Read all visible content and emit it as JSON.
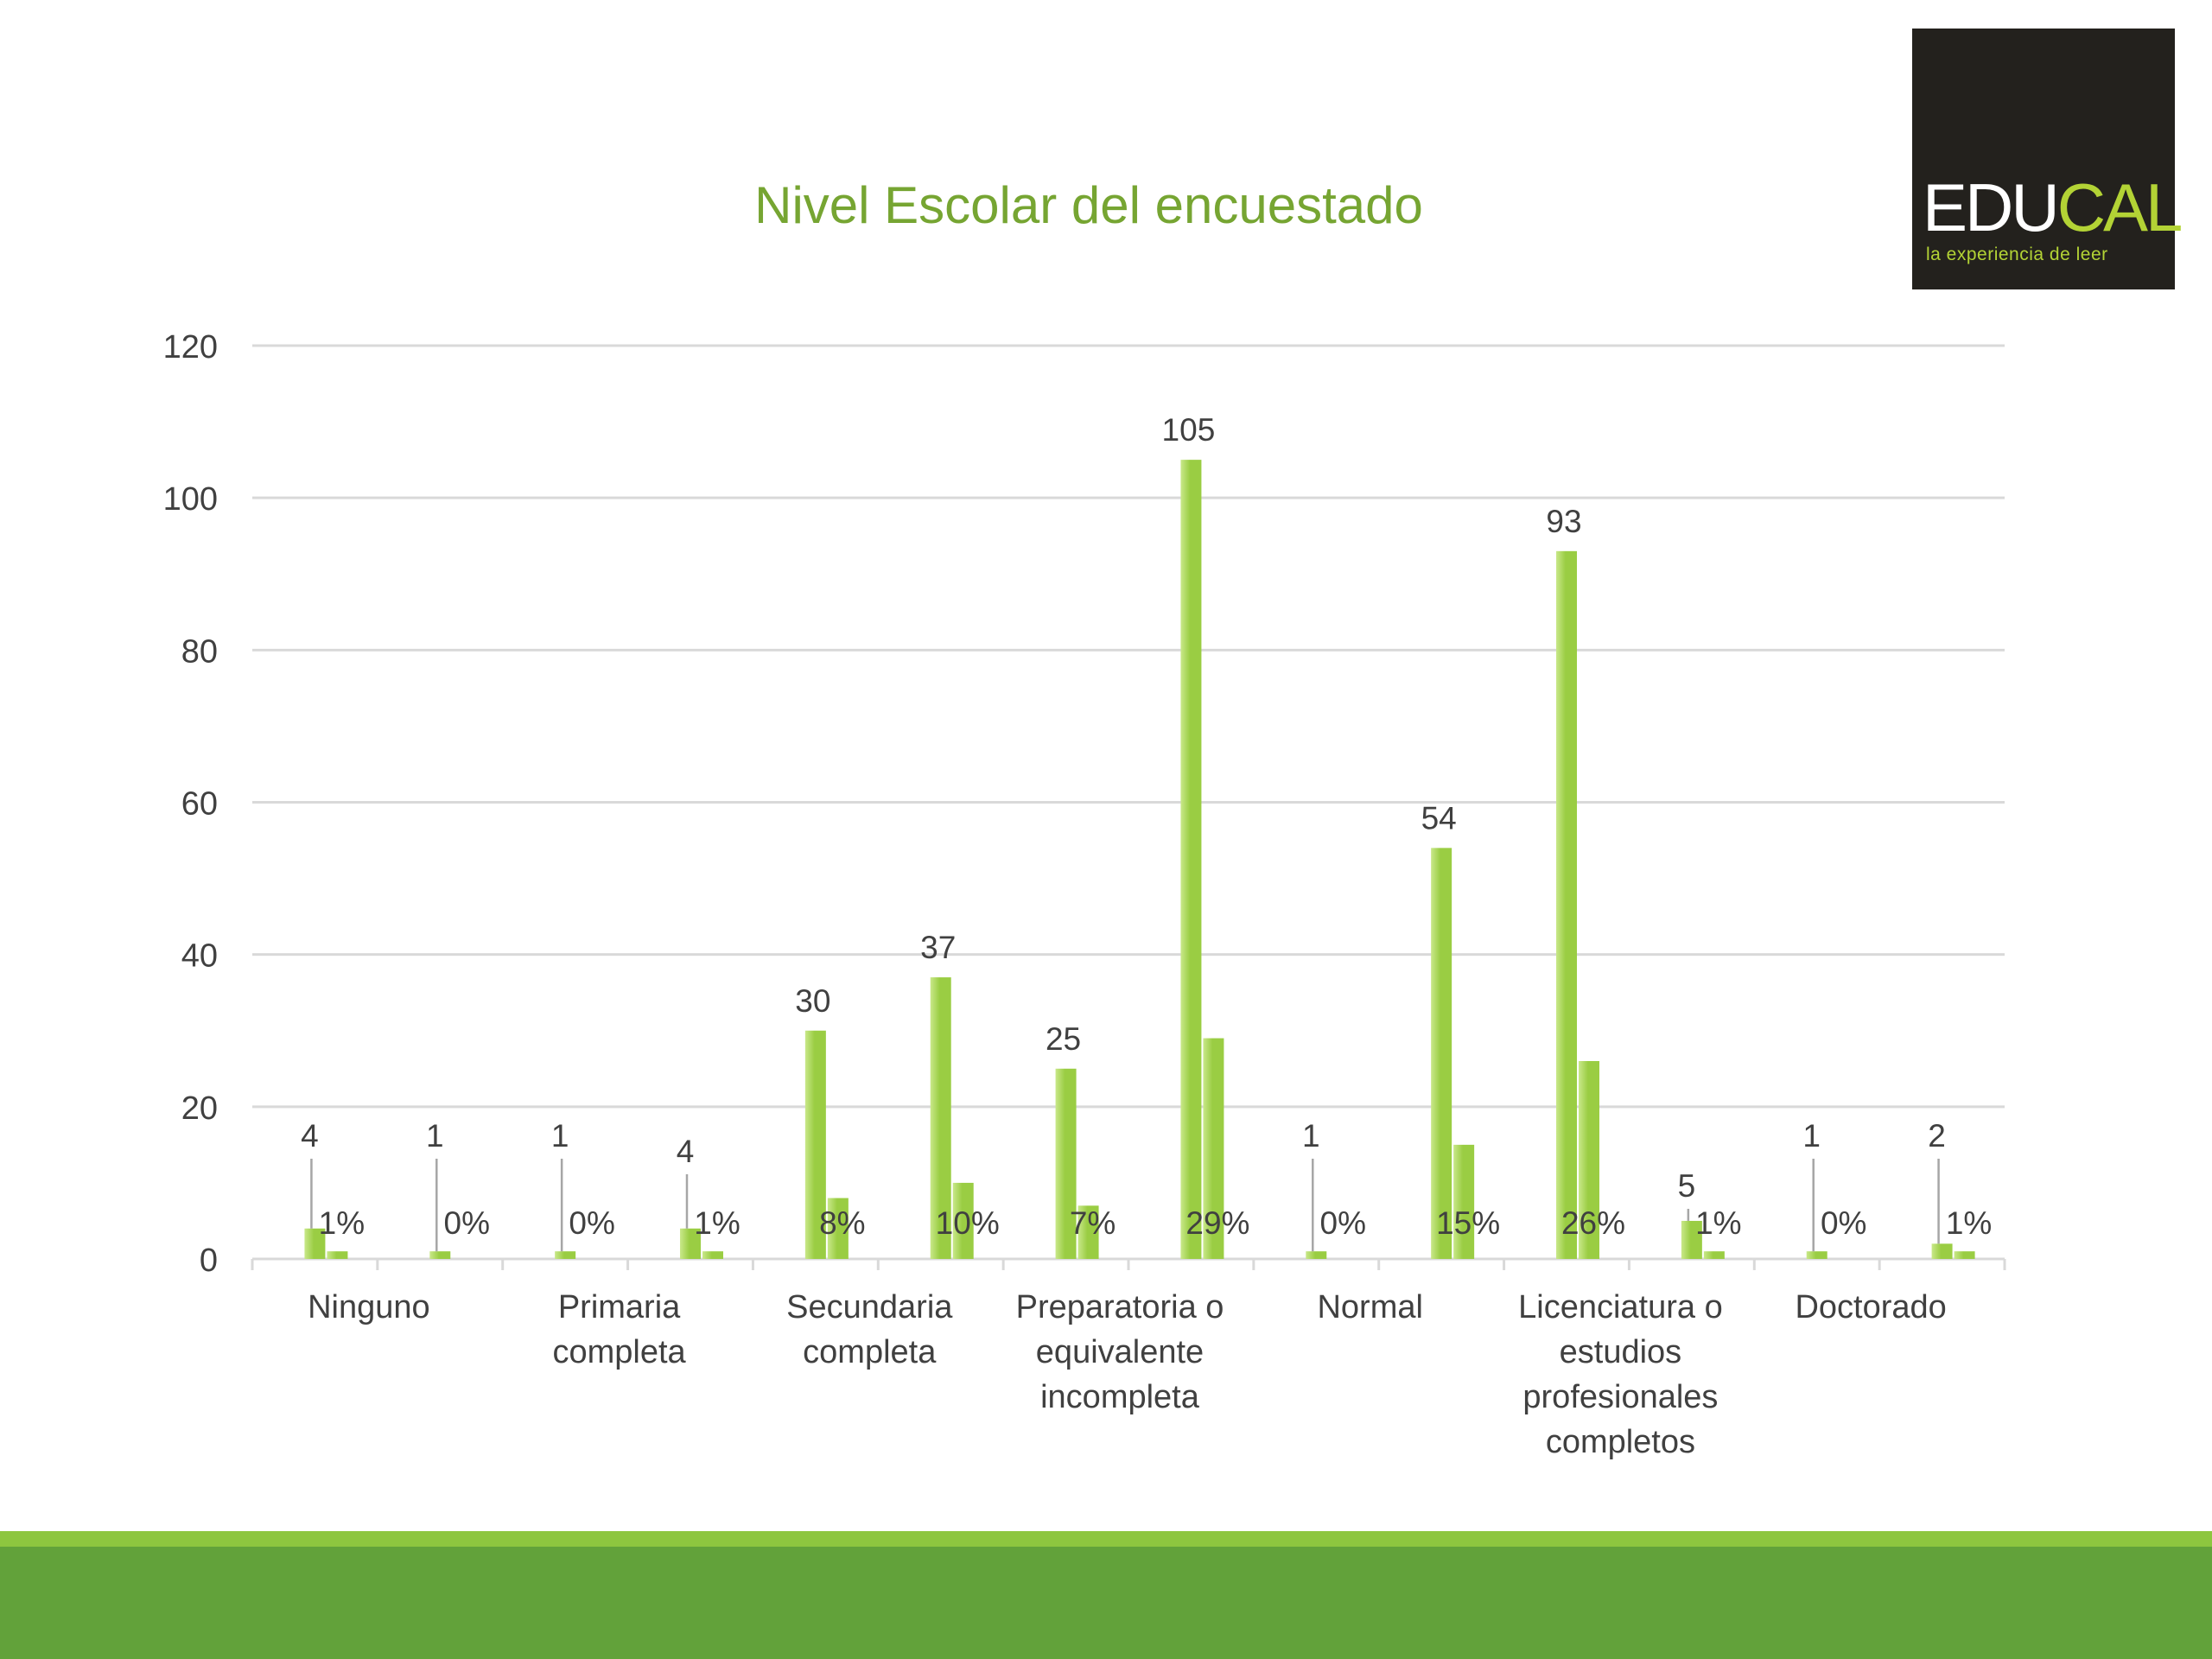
{
  "logo": {
    "word_main": "EDU",
    "word_accent": "CAL",
    "tagline": "la experiencia de leer"
  },
  "chart_data": {
    "type": "bar",
    "title": "Nivel Escolar del encuestado",
    "xlabel": "",
    "ylabel": "",
    "ylim": [
      0,
      120
    ],
    "yticks": [
      0,
      20,
      40,
      60,
      80,
      100,
      120
    ],
    "grid": true,
    "legend": "none",
    "colors": {
      "bar": "#9acd43",
      "bar_light": "#c9e88a",
      "grid": "#d9d9d9",
      "title": "#76a532",
      "text": "#404040",
      "leader": "#a6a6a6"
    },
    "category_labels": [
      "Ninguno",
      "Primaria completa",
      "Secundaria completa",
      "Preparatoria o equivalente incompleta",
      "Normal",
      "Licenciatura o estudios profesionales completos",
      "Doctorado"
    ],
    "category_label_lines": [
      [
        "Ninguno"
      ],
      [
        "Primaria",
        "completa"
      ],
      [
        "Secundaria",
        "completa"
      ],
      [
        "Preparatoria o",
        "equivalente",
        "incompleta"
      ],
      [
        "Normal"
      ],
      [
        "Licenciatura o",
        "estudios",
        "profesionales",
        "completos"
      ],
      [
        "Doctorado"
      ]
    ],
    "series": [
      {
        "values": [
          4,
          1,
          1,
          4,
          30,
          37,
          25,
          105,
          1,
          54,
          93,
          5,
          1,
          2
        ],
        "percent_labels": [
          "1%",
          "0%",
          "0%",
          "1%",
          "8%",
          "10%",
          "7%",
          "29%",
          "0%",
          "15%",
          "26%",
          "1%",
          "0%",
          "1%"
        ],
        "percent_values": [
          1,
          0,
          0,
          1,
          8,
          10,
          7,
          29,
          0,
          15,
          26,
          1,
          0,
          1
        ]
      }
    ]
  }
}
